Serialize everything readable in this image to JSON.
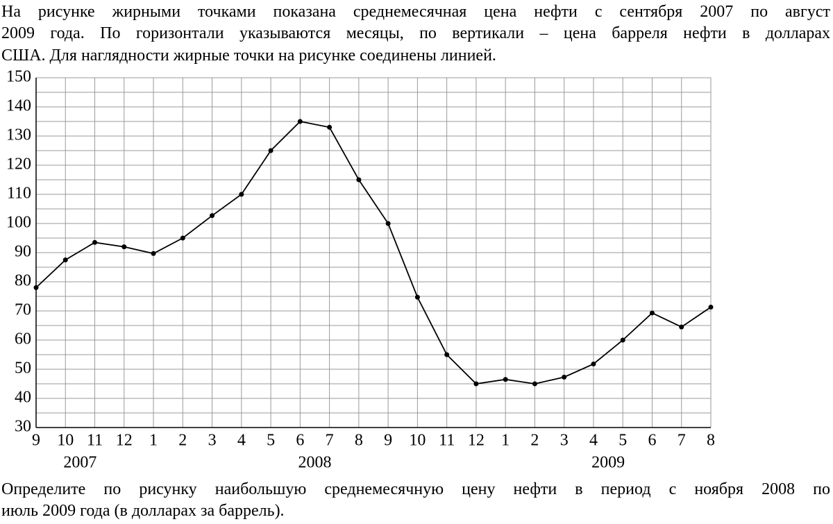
{
  "intro": [
    "На рисунке жирными точками показана среднемесячная цена нефти с сентября 2007 по август",
    "2009 года. По горизонтали указываются месяцы, по вертикали – цена барреля нефти в долларах",
    "США. Для наглядности жирные точки на рисунке соединены линией."
  ],
  "chart_data": {
    "type": "line",
    "categories": [
      "9",
      "10",
      "11",
      "12",
      "1",
      "2",
      "3",
      "4",
      "5",
      "6",
      "7",
      "8",
      "9",
      "10",
      "11",
      "12",
      "1",
      "2",
      "3",
      "4",
      "5",
      "6",
      "7",
      "8"
    ],
    "values": [
      78,
      87.5,
      93.5,
      92,
      89.7,
      95,
      102.7,
      110,
      125,
      135,
      133,
      115,
      100,
      74.7,
      55,
      45,
      46.5,
      45,
      47.3,
      51.8,
      60,
      69.3,
      64.5,
      71.3
    ],
    "years": [
      "2007",
      "2008",
      "2009"
    ],
    "color": "#000000",
    "ylim": [
      30,
      150
    ],
    "yticks": [
      30,
      40,
      50,
      60,
      70,
      80,
      90,
      100,
      110,
      120,
      130,
      140,
      150
    ],
    "grid": true
  },
  "question": [
    "Определите по рисунку наибольшую среднемесячную цену нефти в период с ноября 2008 по",
    "июль 2009 года (в долларах за баррель)."
  ]
}
